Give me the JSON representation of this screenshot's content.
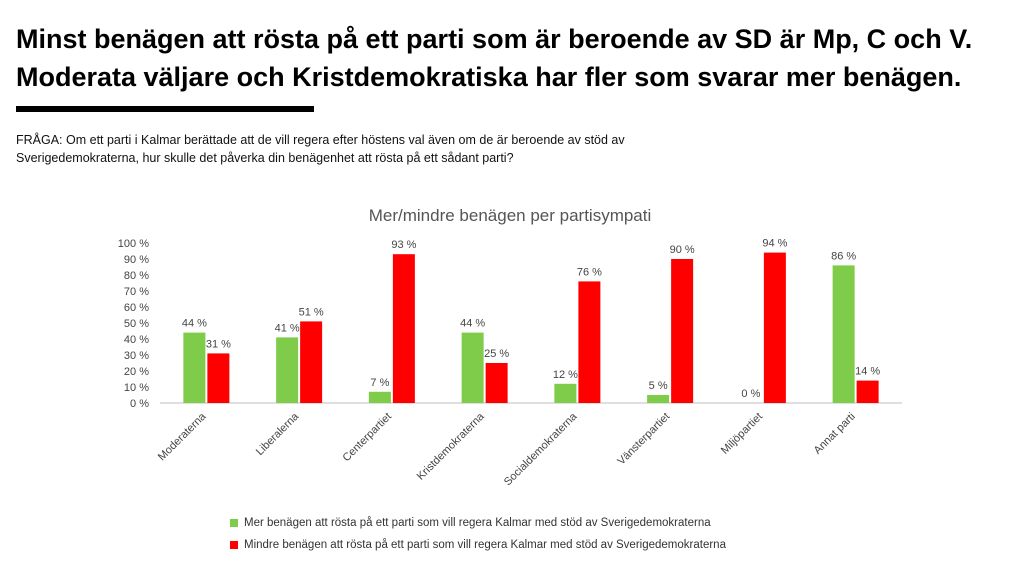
{
  "header": {
    "title": "Minst benägen att rösta på ett parti som är beroende av SD är Mp, C och V. Moderata väljare och Kristdemokratiska har fler som svarar mer benägen.",
    "question": "FRÅGA: Om ett parti i Kalmar berättade att de vill regera efter höstens val även om de är beroende av stöd av Sverigedemokraterna, hur skulle det påverka din benägenhet att rösta på ett sådant parti?"
  },
  "colors": {
    "more": "#7fcc4a",
    "less": "#ff0000"
  },
  "chart_data": {
    "type": "bar",
    "title": "Mer/mindre benägen per partisympati",
    "xlabel": "",
    "ylabel": "",
    "ylim": [
      0,
      100
    ],
    "yticks": [
      "0 %",
      "10 %",
      "20 %",
      "30 %",
      "40 %",
      "50 %",
      "60 %",
      "70 %",
      "80 %",
      "90 %",
      "100 %"
    ],
    "grid": false,
    "legend_position": "bottom",
    "categories": [
      "Moderaterna",
      "Liberalerna",
      "Centerpartiet",
      "Kristdemokraterna",
      "Socialdemokraterna",
      "Vänsterpartiet",
      "Miljöpartiet",
      "Annat parti"
    ],
    "series": [
      {
        "name": "Mer benägen att rösta på ett parti som vill regera Kalmar med stöd av Sverigedemokraterna",
        "values": [
          44,
          41,
          7,
          44,
          12,
          5,
          0,
          86
        ],
        "labels": [
          "44 %",
          "41 %",
          "7 %",
          "44 %",
          "12 %",
          "5 %",
          "0 %",
          "86 %"
        ]
      },
      {
        "name": "Mindre benägen att rösta på ett parti som vill regera Kalmar med stöd av Sverigedemokraterna",
        "values": [
          31,
          51,
          93,
          25,
          76,
          90,
          94,
          14
        ],
        "labels": [
          "31 %",
          "51 %",
          "93 %",
          "25 %",
          "76 %",
          "90 %",
          "94 %",
          "14 %"
        ]
      }
    ]
  }
}
